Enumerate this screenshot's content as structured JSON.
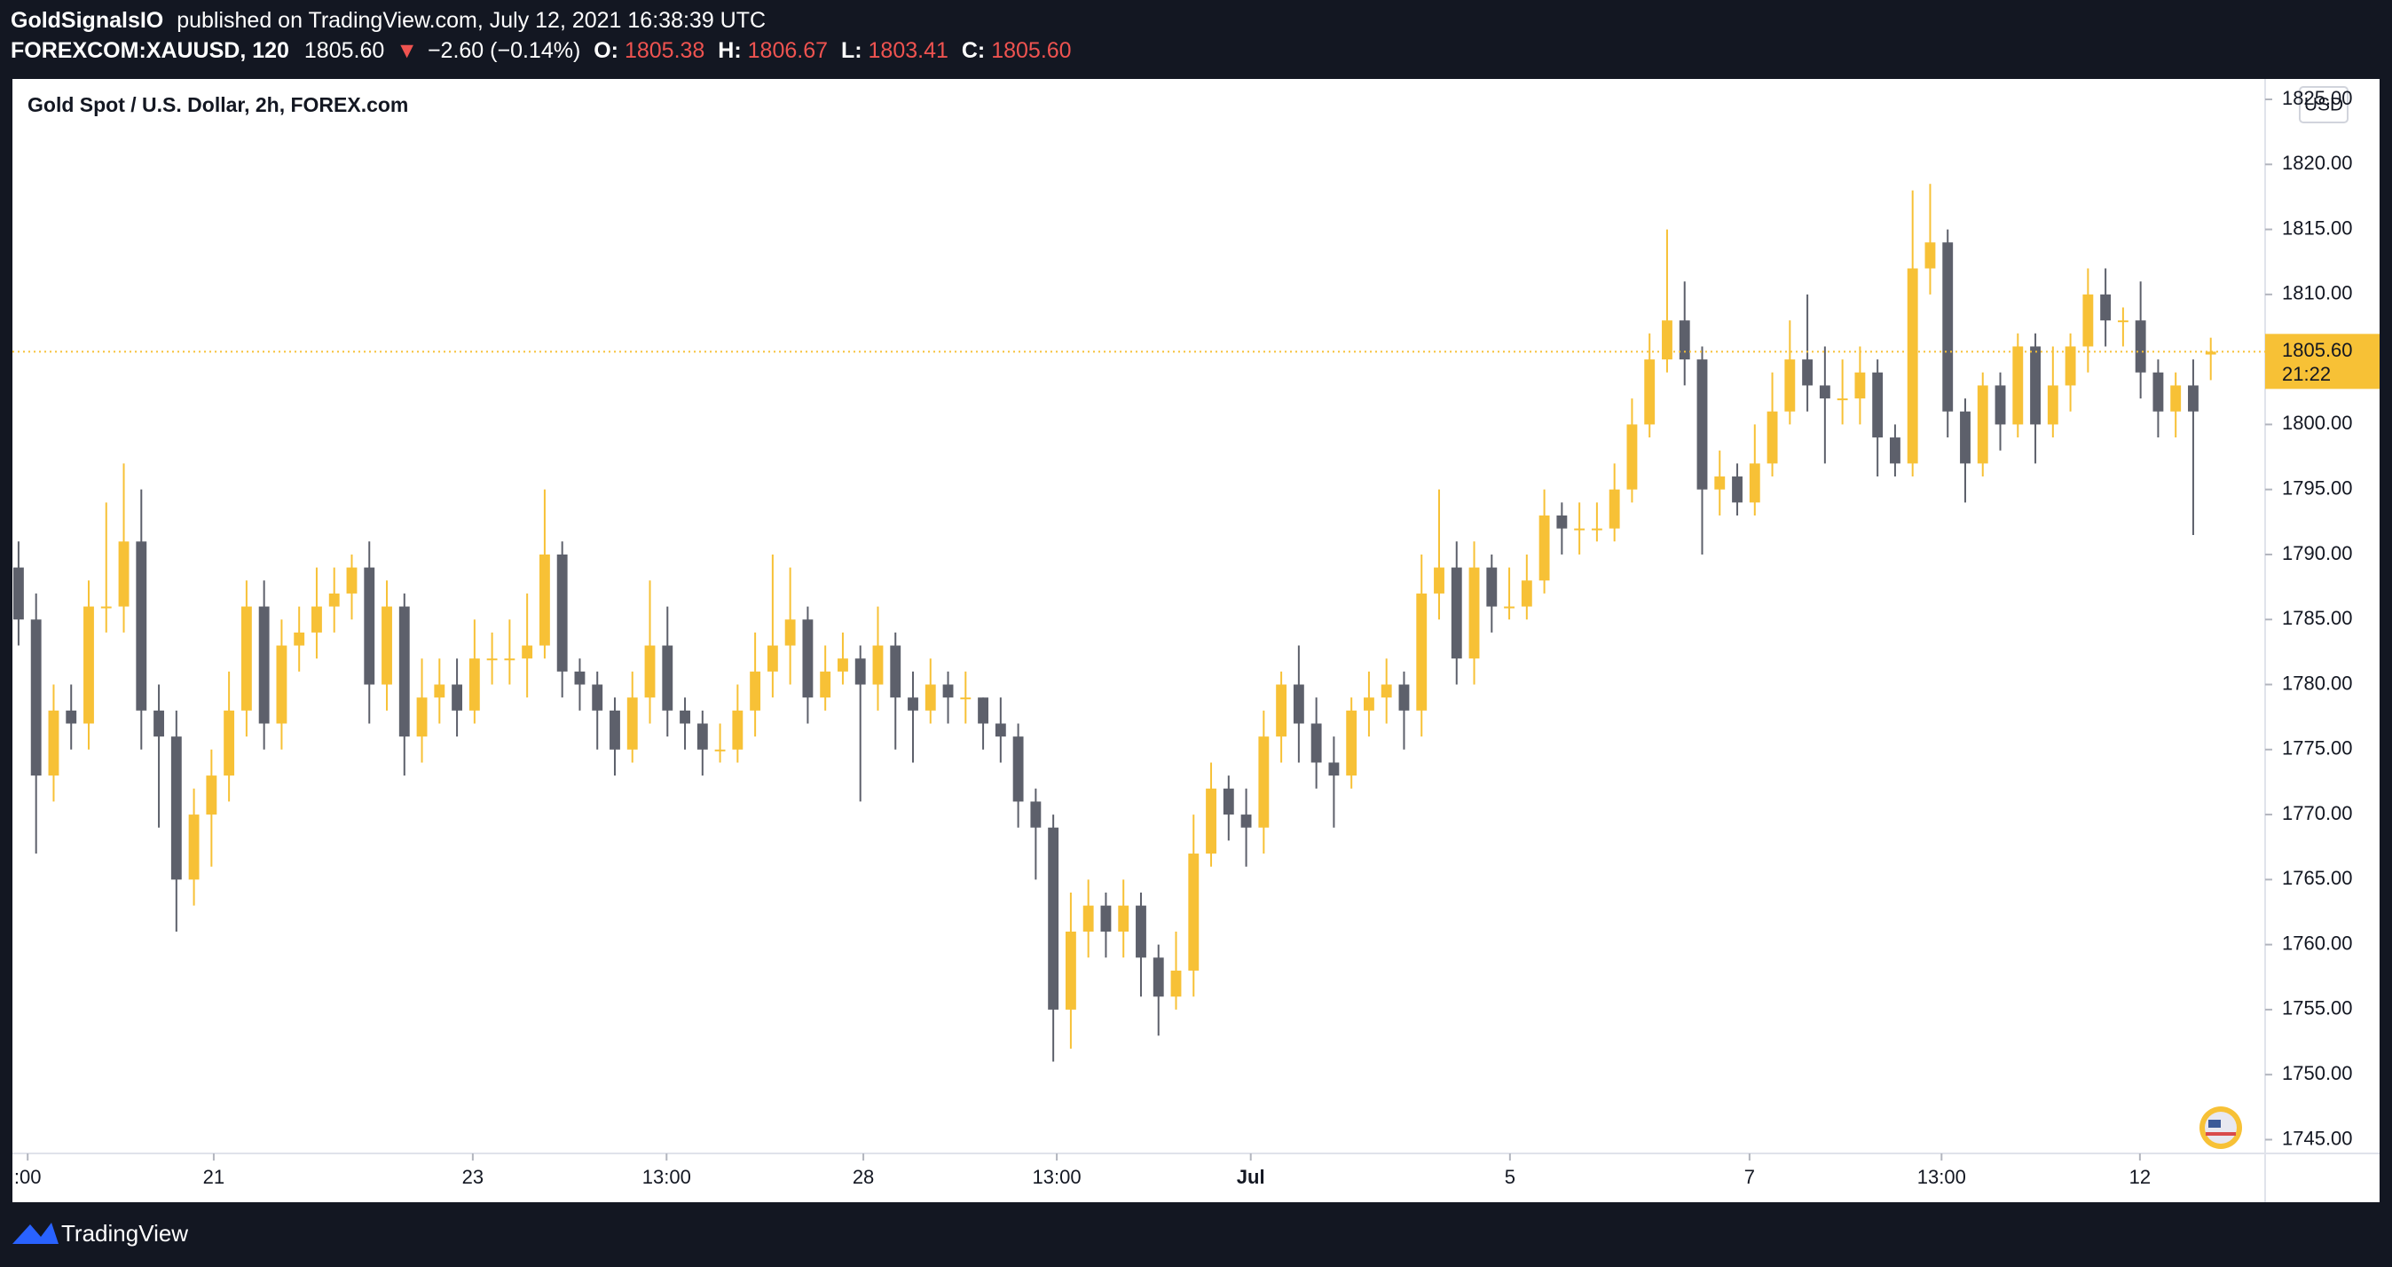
{
  "header": {
    "author": "GoldSignalsIO",
    "published": "published on TradingView.com, July 12, 2021 16:38:39 UTC",
    "symbol": "FOREXCOM:XAUUSD, 120",
    "price": "1805.60",
    "change_arrow": "▼",
    "change": "−2.60 (−0.14%)",
    "o_label": "O:",
    "o": "1805.38",
    "h_label": "H:",
    "h": "1806.67",
    "l_label": "L:",
    "l": "1803.41",
    "c_label": "C:",
    "c": "1805.60"
  },
  "chart_data": {
    "type": "candlestick",
    "title": "Gold Spot / U.S. Dollar, 2h, FOREX.com",
    "currency": "USD",
    "up_color": "#f7c136",
    "down_color": "#5d606b",
    "open": [
      1789,
      1785,
      1773,
      1778,
      1777,
      1786,
      1786,
      1791,
      1778,
      1776,
      1765,
      1770,
      1773,
      1778,
      1786,
      1777,
      1783,
      1784,
      1786,
      1787,
      1789,
      1780,
      1786,
      1776,
      1779,
      1780,
      1778,
      1782,
      1782,
      1782,
      1783,
      1790,
      1781,
      1780,
      1778,
      1775,
      1779,
      1783,
      1778,
      1777,
      1775,
      1775,
      1778,
      1781,
      1783,
      1785,
      1779,
      1781,
      1782,
      1780,
      1783,
      1779,
      1778,
      1780,
      1779,
      1779,
      1777,
      1776,
      1771,
      1769,
      1755,
      1761,
      1763,
      1761,
      1763,
      1759,
      1756,
      1758,
      1767,
      1772,
      1770,
      1769,
      1776,
      1780,
      1777,
      1774,
      1773,
      1778,
      1779,
      1780,
      1778,
      1787,
      1789,
      1782,
      1789,
      1786,
      1786,
      1788,
      1793,
      1792,
      1792,
      1792,
      1795,
      1800,
      1805,
      1808,
      1805,
      1795,
      1796,
      1794,
      1797,
      1801,
      1805,
      1803,
      1802,
      1802,
      1804,
      1799,
      1797,
      1812,
      1814,
      1801,
      1797,
      1803,
      1800,
      1806,
      1800,
      1803,
      1806,
      1810,
      1808,
      1808,
      1804,
      1801,
      1803,
      1805.38
    ],
    "high": [
      1791,
      1787,
      1780,
      1780,
      1788,
      1794,
      1797,
      1795,
      1780,
      1778,
      1772,
      1775,
      1781,
      1788,
      1788,
      1785,
      1786,
      1789,
      1789,
      1790,
      1791,
      1788,
      1787,
      1782,
      1782,
      1782,
      1785,
      1784,
      1785,
      1787,
      1795,
      1791,
      1782,
      1781,
      1779,
      1781,
      1788,
      1786,
      1779,
      1778,
      1777,
      1780,
      1784,
      1790,
      1789,
      1786,
      1783,
      1784,
      1783,
      1786,
      1784,
      1781,
      1782,
      1781,
      1781,
      1779,
      1779,
      1777,
      1772,
      1770,
      1764,
      1765,
      1764,
      1765,
      1764,
      1760,
      1761,
      1770,
      1774,
      1773,
      1772,
      1778,
      1781,
      1783,
      1779,
      1776,
      1779,
      1781,
      1782,
      1781,
      1790,
      1795,
      1791,
      1791,
      1790,
      1789,
      1790,
      1795,
      1794,
      1794,
      1794,
      1797,
      1802,
      1807,
      1815,
      1811,
      1806,
      1798,
      1797,
      1800,
      1804,
      1808,
      1810,
      1806,
      1805,
      1806,
      1805,
      1800,
      1818,
      1818.5,
      1815,
      1802,
      1804,
      1804,
      1807,
      1807,
      1806,
      1807,
      1812,
      1812,
      1809,
      1811,
      1805,
      1804,
      1805,
      1806.67
    ],
    "low": [
      1783,
      1767,
      1771,
      1775,
      1775,
      1784,
      1784,
      1775,
      1769,
      1761,
      1763,
      1766,
      1771,
      1776,
      1775,
      1775,
      1781,
      1782,
      1784,
      1785,
      1777,
      1778,
      1773,
      1774,
      1777,
      1776,
      1777,
      1780,
      1780,
      1779,
      1782,
      1779,
      1778,
      1775,
      1773,
      1774,
      1777,
      1776,
      1775,
      1773,
      1774,
      1774,
      1776,
      1779,
      1780,
      1777,
      1778,
      1780,
      1771,
      1778,
      1775,
      1774,
      1777,
      1777,
      1777,
      1775,
      1774,
      1769,
      1765,
      1751,
      1752,
      1759,
      1759,
      1759,
      1756,
      1753,
      1755,
      1756,
      1766,
      1768,
      1766,
      1767,
      1774,
      1774,
      1772,
      1769,
      1772,
      1776,
      1777,
      1775,
      1776,
      1785,
      1780,
      1780,
      1784,
      1785,
      1785,
      1787,
      1790,
      1790,
      1791,
      1791,
      1794,
      1799,
      1804,
      1803,
      1790,
      1793,
      1793,
      1793,
      1796,
      1800,
      1801,
      1797,
      1800,
      1800,
      1796,
      1796,
      1796,
      1810,
      1799,
      1794,
      1796,
      1798,
      1799,
      1797,
      1799,
      1801,
      1804,
      1806,
      1806,
      1802,
      1799,
      1799,
      1791.5,
      1803.41
    ],
    "close": [
      1785,
      1773,
      1778,
      1777,
      1786,
      1786,
      1791,
      1778,
      1776,
      1765,
      1770,
      1773,
      1778,
      1786,
      1777,
      1783,
      1784,
      1786,
      1787,
      1789,
      1780,
      1786,
      1776,
      1779,
      1780,
      1778,
      1782,
      1782,
      1782,
      1783,
      1790,
      1781,
      1780,
      1778,
      1775,
      1779,
      1783,
      1778,
      1777,
      1775,
      1775,
      1778,
      1781,
      1783,
      1785,
      1779,
      1781,
      1782,
      1780,
      1783,
      1779,
      1778,
      1780,
      1779,
      1779,
      1777,
      1776,
      1771,
      1769,
      1755,
      1761,
      1763,
      1761,
      1763,
      1759,
      1756,
      1758,
      1767,
      1772,
      1770,
      1769,
      1776,
      1780,
      1777,
      1774,
      1773,
      1778,
      1779,
      1780,
      1778,
      1787,
      1789,
      1782,
      1789,
      1786,
      1786,
      1788,
      1793,
      1792,
      1792,
      1792,
      1795,
      1800,
      1805,
      1808,
      1805,
      1795,
      1796,
      1794,
      1797,
      1801,
      1805,
      1803,
      1802,
      1802,
      1804,
      1799,
      1797,
      1812,
      1814,
      1801,
      1797,
      1803,
      1800,
      1806,
      1800,
      1803,
      1806,
      1810,
      1808,
      1808,
      1804,
      1801,
      1803,
      1801,
      1805.6
    ],
    "last_price_label": "1805.60",
    "countdown": "21:22",
    "xlim": [
      -0.35,
      128.1
    ],
    "xticks": [
      {
        "value": 0.52,
        "label": ":00"
      },
      {
        "value": 11.13,
        "label": "21"
      },
      {
        "value": 25.9,
        "label": "23"
      },
      {
        "value": 36.95,
        "label": "13:00"
      },
      {
        "value": 48.17,
        "label": "28"
      },
      {
        "value": 59.2,
        "label": "13:00"
      },
      {
        "value": 70.26,
        "label": "Jul"
      },
      {
        "value": 85.04,
        "label": "5"
      },
      {
        "value": 98.7,
        "label": "7"
      },
      {
        "value": 109.65,
        "label": "13:00"
      },
      {
        "value": 120.96,
        "label": "12"
      }
    ],
    "ylim": [
      1743.94,
      1826.57
    ],
    "yticks": [
      {
        "value": 1745,
        "label": "1745.00"
      },
      {
        "value": 1750,
        "label": "1750.00"
      },
      {
        "value": 1755,
        "label": "1755.00"
      },
      {
        "value": 1760,
        "label": "1760.00"
      },
      {
        "value": 1765,
        "label": "1765.00"
      },
      {
        "value": 1770,
        "label": "1770.00"
      },
      {
        "value": 1775,
        "label": "1775.00"
      },
      {
        "value": 1780,
        "label": "1780.00"
      },
      {
        "value": 1785,
        "label": "1785.00"
      },
      {
        "value": 1790,
        "label": "1790.00"
      },
      {
        "value": 1795,
        "label": "1795.00"
      },
      {
        "value": 1800,
        "label": "1800.00"
      },
      {
        "value": 1805,
        "label": "1805.00"
      },
      {
        "value": 1810,
        "label": "1810.00"
      },
      {
        "value": 1815,
        "label": "1815.00"
      },
      {
        "value": 1820,
        "label": "1820.00"
      },
      {
        "value": 1825,
        "label": "1825.00"
      }
    ],
    "grid": false
  },
  "footer": {
    "brand": "TradingView"
  }
}
